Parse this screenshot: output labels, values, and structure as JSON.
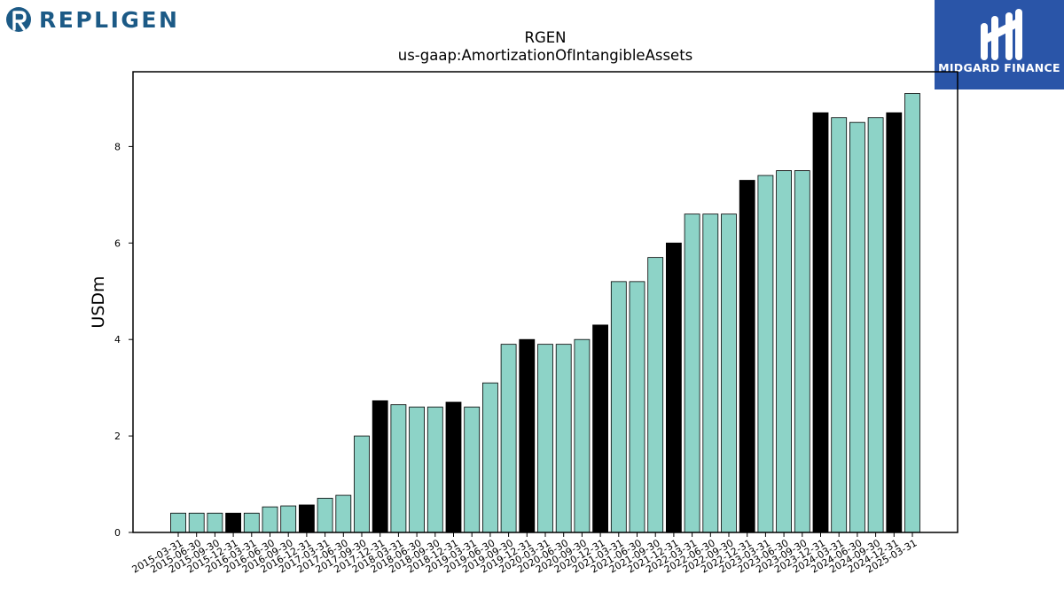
{
  "branding": {
    "left_logo_text": "REPLIGEN",
    "right_logo_text": "MIDGARD FINANCE",
    "left_logo_color": "#1c5a86",
    "right_logo_bg": "#2a55a8"
  },
  "chart_data": {
    "type": "bar",
    "title": "RGEN",
    "subtitle": "us-gaap:AmortizationOfIntangibleAssets",
    "xlabel": "",
    "ylabel": "USDm",
    "ylim": [
      0,
      9.55
    ],
    "yticks": [
      0,
      2,
      4,
      6,
      8
    ],
    "grid": false,
    "colors": {
      "quarter": "#8dd3c7",
      "year_end": "#000000",
      "edge": "#000000"
    },
    "categories": [
      "2015-03-31",
      "2015-06-30",
      "2015-09-30",
      "2015-12-31",
      "2016-03-31",
      "2016-06-30",
      "2016-09-30",
      "2016-12-31",
      "2017-03-31",
      "2017-06-30",
      "2017-09-30",
      "2017-12-31",
      "2018-03-31",
      "2018-06-30",
      "2018-09-30",
      "2018-12-31",
      "2019-03-31",
      "2019-06-30",
      "2019-09-30",
      "2019-12-31",
      "2020-03-31",
      "2020-06-30",
      "2020-09-30",
      "2020-12-31",
      "2021-03-31",
      "2021-06-30",
      "2021-09-30",
      "2021-12-31",
      "2022-03-31",
      "2022-06-30",
      "2022-09-30",
      "2022-12-31",
      "2023-03-31",
      "2023-06-30",
      "2023-09-30",
      "2023-12-31",
      "2024-03-31",
      "2024-06-30",
      "2024-09-30",
      "2024-12-31",
      "2025-03-31"
    ],
    "values": [
      0.4,
      0.4,
      0.4,
      0.4,
      0.4,
      0.53,
      0.55,
      0.57,
      0.71,
      0.77,
      2.0,
      2.73,
      2.65,
      2.6,
      2.6,
      2.7,
      2.6,
      3.1,
      3.9,
      4.0,
      3.9,
      3.9,
      4.0,
      4.3,
      5.2,
      5.2,
      5.7,
      6.0,
      6.6,
      6.6,
      6.6,
      7.3,
      7.4,
      7.5,
      7.5,
      8.7,
      8.6,
      8.5,
      8.6,
      8.7,
      9.1
    ]
  }
}
